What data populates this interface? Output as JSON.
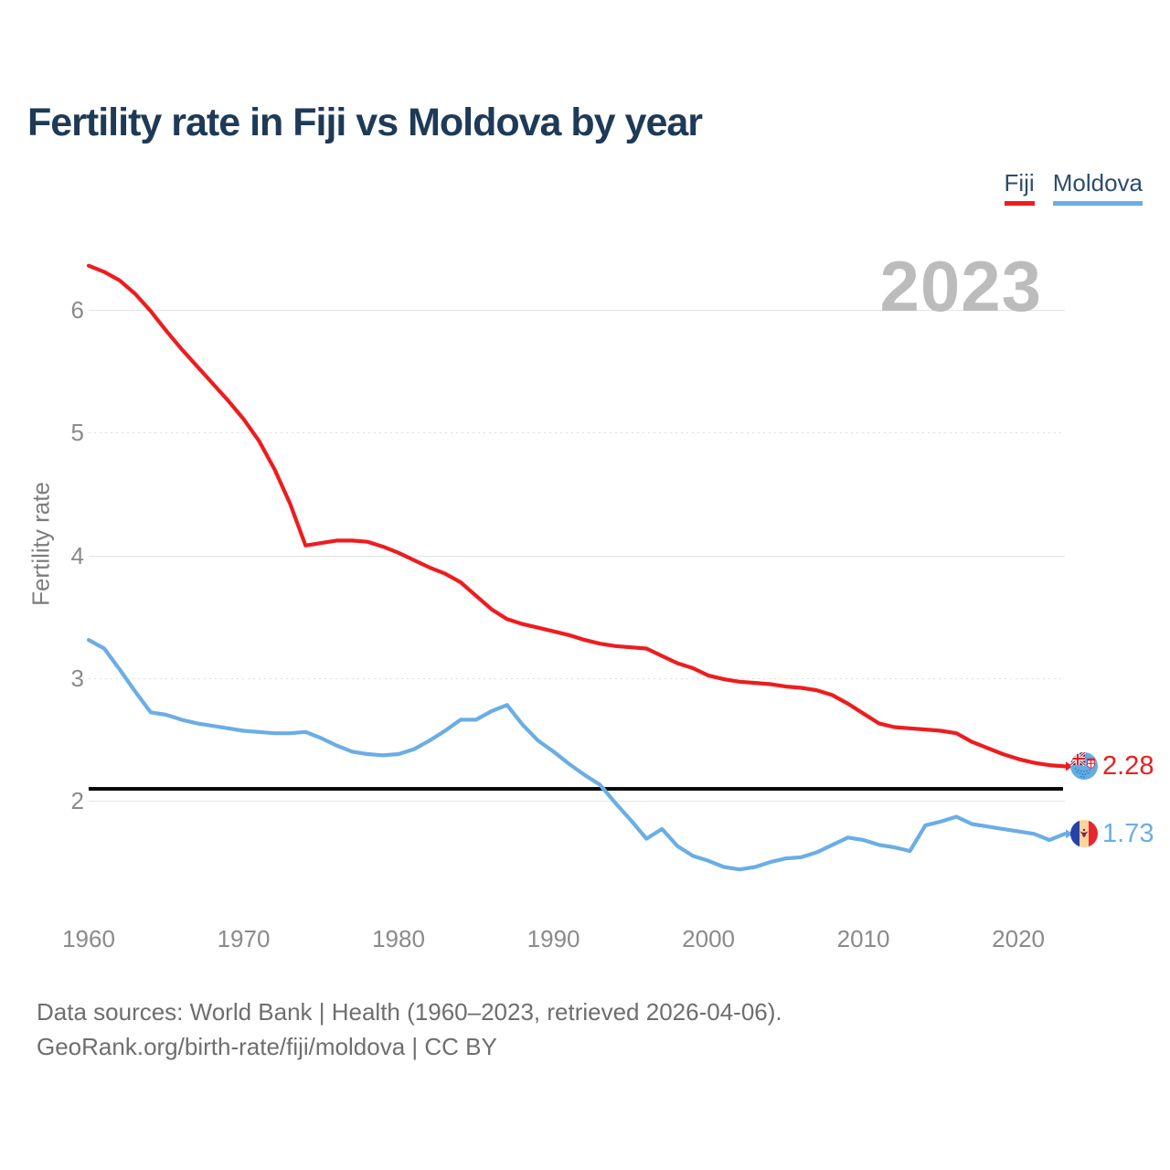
{
  "header": {
    "title": "Fertility rate in Fiji vs Moldova by year"
  },
  "legend": [
    {
      "label": "Fiji",
      "color": "#ee1c1f"
    },
    {
      "label": "Moldova",
      "color": "#6bade5"
    }
  ],
  "watermark": "2023",
  "y_axis": {
    "title": "Fertility rate",
    "ticks": [
      6,
      5,
      4,
      3,
      2
    ]
  },
  "x_axis": {
    "ticks": [
      1960,
      1970,
      1980,
      1990,
      2000,
      2010,
      2020
    ]
  },
  "chart_data": {
    "type": "line",
    "title": "Fertility rate in Fiji vs Moldova by year",
    "xlabel": "",
    "ylabel": "Fertility rate",
    "xlim": [
      1960,
      2023
    ],
    "ylim": [
      1.3,
      6.5
    ],
    "grid": true,
    "legend_position": "top-right",
    "x": [
      1960,
      1961,
      1962,
      1963,
      1964,
      1965,
      1966,
      1967,
      1968,
      1969,
      1970,
      1971,
      1972,
      1973,
      1974,
      1975,
      1976,
      1977,
      1978,
      1979,
      1980,
      1981,
      1982,
      1983,
      1984,
      1985,
      1986,
      1987,
      1988,
      1989,
      1990,
      1991,
      1992,
      1993,
      1994,
      1995,
      1996,
      1997,
      1998,
      1999,
      2000,
      2001,
      2002,
      2003,
      2004,
      2005,
      2006,
      2007,
      2008,
      2009,
      2010,
      2011,
      2012,
      2013,
      2014,
      2015,
      2016,
      2017,
      2018,
      2019,
      2020,
      2021,
      2022,
      2023
    ],
    "series": [
      {
        "name": "Fiji",
        "color": "#ee1c1f",
        "end_label": "2.28",
        "values": [
          6.36,
          6.31,
          6.24,
          6.13,
          5.99,
          5.83,
          5.68,
          5.54,
          5.4,
          5.26,
          5.11,
          4.93,
          4.7,
          4.42,
          4.08,
          4.1,
          4.12,
          4.12,
          4.11,
          4.07,
          4.02,
          3.96,
          3.9,
          3.85,
          3.78,
          3.67,
          3.56,
          3.48,
          3.44,
          3.41,
          3.38,
          3.35,
          3.31,
          3.28,
          3.26,
          3.25,
          3.24,
          3.18,
          3.12,
          3.08,
          3.02,
          2.99,
          2.97,
          2.96,
          2.95,
          2.93,
          2.92,
          2.9,
          2.86,
          2.79,
          2.71,
          2.63,
          2.6,
          2.59,
          2.58,
          2.57,
          2.55,
          2.48,
          2.43,
          2.38,
          2.34,
          2.31,
          2.29,
          2.28
        ]
      },
      {
        "name": "Moldova",
        "color": "#6bade5",
        "end_label": "1.73",
        "values": [
          3.31,
          3.24,
          3.07,
          2.89,
          2.72,
          2.7,
          2.66,
          2.63,
          2.61,
          2.59,
          2.57,
          2.56,
          2.55,
          2.55,
          2.56,
          2.51,
          2.45,
          2.4,
          2.38,
          2.37,
          2.38,
          2.42,
          2.49,
          2.57,
          2.66,
          2.66,
          2.73,
          2.78,
          2.62,
          2.49,
          2.4,
          2.3,
          2.21,
          2.13,
          1.98,
          1.84,
          1.69,
          1.77,
          1.63,
          1.55,
          1.51,
          1.46,
          1.44,
          1.46,
          1.5,
          1.53,
          1.54,
          1.58,
          1.64,
          1.7,
          1.68,
          1.64,
          1.62,
          1.59,
          1.8,
          1.83,
          1.87,
          1.81,
          1.79,
          1.77,
          1.75,
          1.73,
          1.68,
          1.73
        ]
      }
    ],
    "reference_line": {
      "value": 2.1,
      "color": "#0b0b0b"
    }
  },
  "footer": {
    "line1": "Data sources: World Bank | Health (1960–2023, retrieved 2026-04-06).",
    "line2": "GeoRank.org/birth-rate/fiji/moldova | CC BY"
  }
}
